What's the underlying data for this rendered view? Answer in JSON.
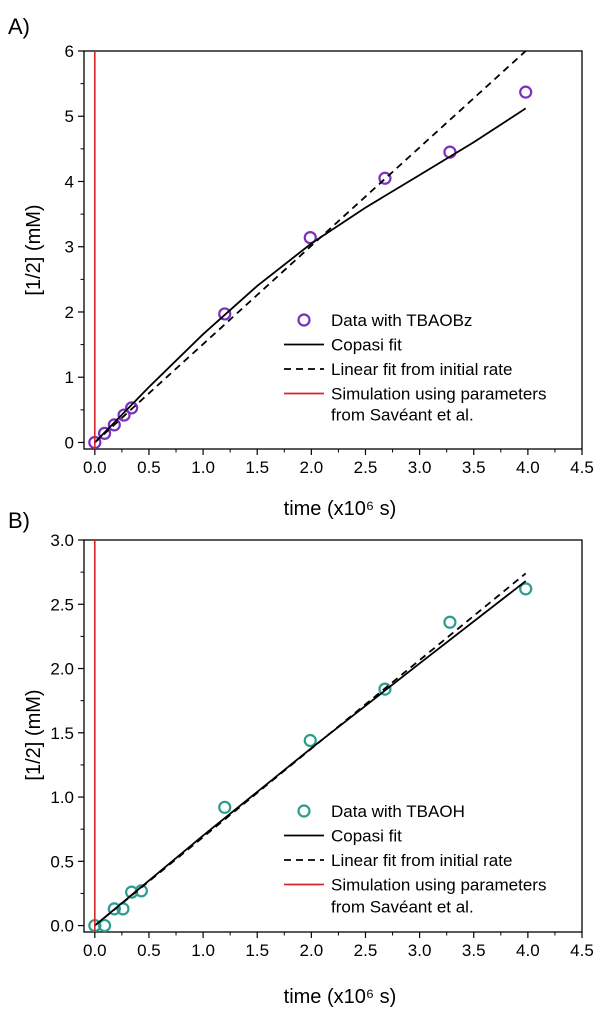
{
  "chart_data": [
    {
      "panel_label": "A)",
      "type": "scatter",
      "xlabel": "time (x10⁶ s)",
      "ylabel": "[1/2] (mM)",
      "xlim": [
        -0.1,
        4.5
      ],
      "ylim": [
        -0.1,
        6
      ],
      "xticks": [
        0.0,
        0.5,
        1.0,
        1.5,
        2.0,
        2.5,
        3.0,
        3.5,
        4.0,
        4.5
      ],
      "xtick_labels": [
        "0.0",
        "0.5",
        "1.0",
        "1.5",
        "2.0",
        "2.5",
        "3.0",
        "3.5",
        "4.0",
        "4.5"
      ],
      "yticks": [
        0,
        1,
        2,
        3,
        4,
        5,
        6
      ],
      "ytick_labels": [
        "0",
        "1",
        "2",
        "3",
        "4",
        "5",
        "6"
      ],
      "grid": false,
      "legend_position": "lower-right",
      "series": [
        {
          "name": "Data with TBAOBz",
          "kind": "marker",
          "color": "#7b2fbf",
          "x": [
            0.0,
            0.09,
            0.18,
            0.27,
            0.34,
            1.2,
            1.99,
            2.68,
            3.28,
            3.98
          ],
          "y": [
            0.0,
            0.14,
            0.27,
            0.42,
            0.53,
            1.97,
            3.14,
            4.05,
            4.45,
            5.37
          ]
        },
        {
          "name": "Copasi fit",
          "kind": "line",
          "color": "#000000",
          "dash": "solid",
          "x": [
            0.0,
            0.5,
            1.0,
            1.5,
            2.0,
            2.5,
            3.0,
            3.5,
            3.98
          ],
          "y": [
            0.0,
            0.85,
            1.66,
            2.4,
            3.05,
            3.6,
            4.1,
            4.6,
            5.12
          ]
        },
        {
          "name": "Linear fit from initial rate",
          "kind": "line",
          "color": "#000000",
          "dash": "dashed",
          "x": [
            0.0,
            3.98
          ],
          "y": [
            0.0,
            6.0
          ]
        },
        {
          "name": "Simulation using parameters from Savéant et al.",
          "kind": "line",
          "color": "#d62728",
          "dash": "solid",
          "x": [
            0.0,
            0.0
          ],
          "y": [
            -0.1,
            6.0
          ]
        }
      ],
      "legend": [
        {
          "lines": [
            "Data with TBAOBz"
          ]
        },
        {
          "lines": [
            "Copasi fit"
          ]
        },
        {
          "lines": [
            "Linear fit from initial rate"
          ]
        },
        {
          "lines": [
            "Simulation using parameters",
            "from Savéant et al."
          ]
        }
      ]
    },
    {
      "panel_label": "B)",
      "type": "scatter",
      "xlabel": "time (x10⁶ s)",
      "ylabel": "[1/2] (mM)",
      "xlim": [
        -0.1,
        4.5
      ],
      "ylim": [
        -0.05,
        3.0
      ],
      "xticks": [
        0.0,
        0.5,
        1.0,
        1.5,
        2.0,
        2.5,
        3.0,
        3.5,
        4.0,
        4.5
      ],
      "xtick_labels": [
        "0.0",
        "0.5",
        "1.0",
        "1.5",
        "2.0",
        "2.5",
        "3.0",
        "3.5",
        "4.0",
        "4.5"
      ],
      "yticks": [
        0.0,
        0.5,
        1.0,
        1.5,
        2.0,
        2.5,
        3.0
      ],
      "ytick_labels": [
        "0.0",
        "0.5",
        "1.0",
        "1.5",
        "2.0",
        "2.5",
        "3.0"
      ],
      "grid": false,
      "legend_position": "lower-right",
      "series": [
        {
          "name": "Data with TBAOH",
          "kind": "marker",
          "color": "#2a9d8f",
          "x": [
            0.0,
            0.09,
            0.18,
            0.26,
            0.34,
            0.43,
            1.2,
            1.99,
            2.68,
            3.28,
            3.98
          ],
          "y": [
            0.0,
            0.0,
            0.13,
            0.13,
            0.26,
            0.27,
            0.92,
            1.44,
            1.84,
            2.36,
            2.62
          ]
        },
        {
          "name": "Copasi fit",
          "kind": "line",
          "color": "#000000",
          "dash": "solid",
          "x": [
            0.0,
            1.0,
            2.0,
            3.0,
            3.98
          ],
          "y": [
            0.0,
            0.7,
            1.38,
            2.04,
            2.68
          ]
        },
        {
          "name": "Linear fit from initial rate",
          "kind": "line",
          "color": "#000000",
          "dash": "dashed",
          "x": [
            0.0,
            3.98
          ],
          "y": [
            0.0,
            2.74
          ]
        },
        {
          "name": "Simulation using parameters from Savéant et al.",
          "kind": "line",
          "color": "#d62728",
          "dash": "solid",
          "x": [
            0.0,
            0.0
          ],
          "y": [
            -0.05,
            3.0
          ]
        }
      ],
      "legend": [
        {
          "lines": [
            "Data with TBAOH"
          ]
        },
        {
          "lines": [
            "Copasi fit"
          ]
        },
        {
          "lines": [
            "Linear fit from initial rate"
          ]
        },
        {
          "lines": [
            "Simulation using parameters",
            "from Savéant et al."
          ]
        }
      ]
    }
  ]
}
